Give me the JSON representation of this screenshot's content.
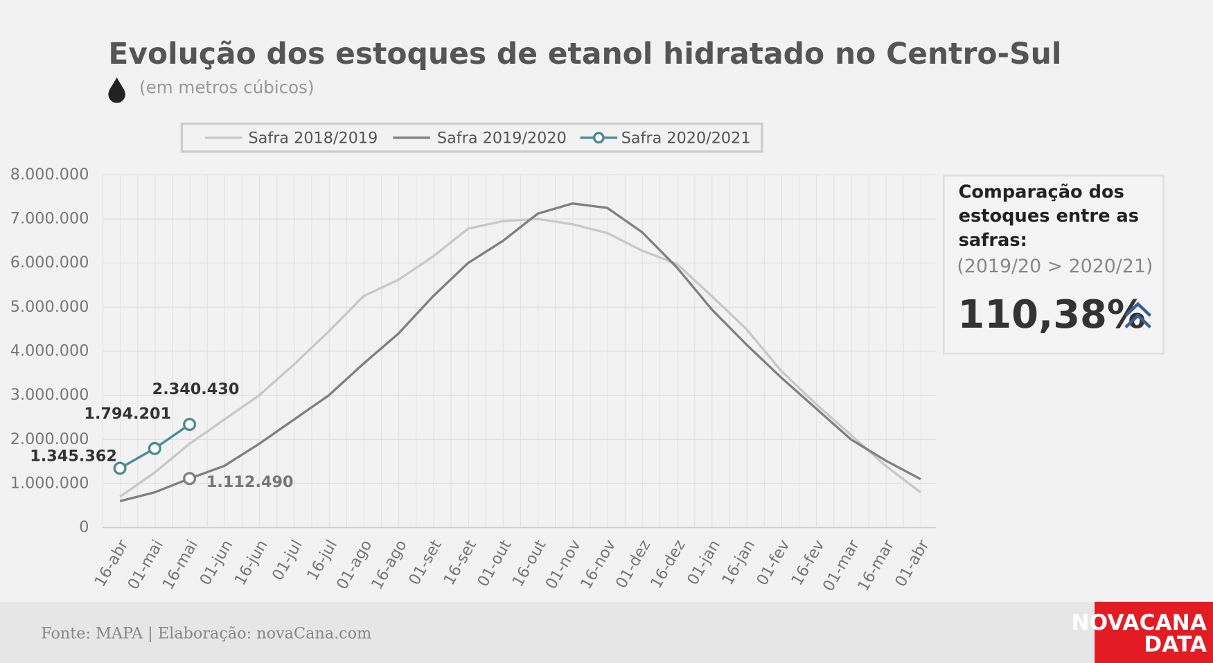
{
  "chart_data": {
    "type": "line",
    "title": "Evolução dos estoques de etanol hidratado no Centro-Sul",
    "subtitle": "(em metros cúbicos)",
    "categories": [
      "16-abr",
      "01-mai",
      "16-mai",
      "01-jun",
      "16-jun",
      "01-jul",
      "16-jul",
      "01-ago",
      "16-ago",
      "01-set",
      "16-set",
      "01-out",
      "16-out",
      "01-nov",
      "16-nov",
      "01-dez",
      "16-dez",
      "01-jan",
      "16-jan",
      "01-fev",
      "16-fev",
      "01-mar",
      "16-mar",
      "01-abr"
    ],
    "series": [
      {
        "name": "Safra 2018/2019",
        "color": "#c8c8c8",
        "markers": false,
        "values": [
          700000,
          1250000,
          1900000,
          2450000,
          3000000,
          3700000,
          4450000,
          5250000,
          5620000,
          6150000,
          6780000,
          6950000,
          7000000,
          6880000,
          6680000,
          6280000,
          5980000,
          5250000,
          4500000,
          3550000,
          2800000,
          2100000,
          1400000,
          800000
        ]
      },
      {
        "name": "Safra 2019/2020",
        "color": "#808080",
        "markers": false,
        "values": [
          600000,
          800000,
          1112490,
          1400000,
          1900000,
          2450000,
          3000000,
          3720000,
          4400000,
          5250000,
          6000000,
          6500000,
          7120000,
          7350000,
          7250000,
          6700000,
          5900000,
          4950000,
          4150000,
          3400000,
          2700000,
          2000000,
          1520000,
          1100000
        ],
        "value_labels": [
          null,
          null,
          "1.112.490",
          null,
          null,
          null,
          null,
          null,
          null,
          null,
          null,
          null,
          null,
          null,
          null,
          null,
          null,
          null,
          null,
          null,
          null,
          null,
          null,
          null
        ]
      },
      {
        "name": "Safra 2020/2021",
        "color": "#4a8a96",
        "markers": true,
        "values": [
          1345362,
          1794201,
          2340430,
          null,
          null,
          null,
          null,
          null,
          null,
          null,
          null,
          null,
          null,
          null,
          null,
          null,
          null,
          null,
          null,
          null,
          null,
          null,
          null,
          null
        ],
        "value_labels": [
          "1.345.362",
          "1.794.201",
          "2.340.430",
          null,
          null,
          null,
          null,
          null,
          null,
          null,
          null,
          null,
          null,
          null,
          null,
          null,
          null,
          null,
          null,
          null,
          null,
          null,
          null,
          null
        ]
      }
    ],
    "ylim": [
      0,
      8000000
    ],
    "yticks": [
      0,
      {
        "value": 1000000,
        "label": "1.000.000"
      },
      {
        "value": 2000000,
        "label": "2.000.000"
      },
      {
        "value": 3000000,
        "label": "3.000.000"
      },
      {
        "value": 4000000,
        "label": "4.000.000"
      },
      {
        "value": 5000000,
        "label": "5.000.000"
      },
      {
        "value": 6000000,
        "label": "6.000.000"
      },
      {
        "value": 7000000,
        "label": "7.000.000"
      },
      {
        "value": 8000000,
        "label": "8.000.000"
      }
    ],
    "grid": true,
    "legend": "top"
  },
  "panel": {
    "title_lines": [
      "Comparação dos",
      "estoques entre as",
      "safras:"
    ],
    "subtitle": "(2019/20 > 2020/21)",
    "value": "110,38%"
  },
  "footer": {
    "source": "Fonte: MAPA  | Elaboração: novaCana.com",
    "logo_lines": [
      "NOVACANA",
      "DATA"
    ]
  }
}
